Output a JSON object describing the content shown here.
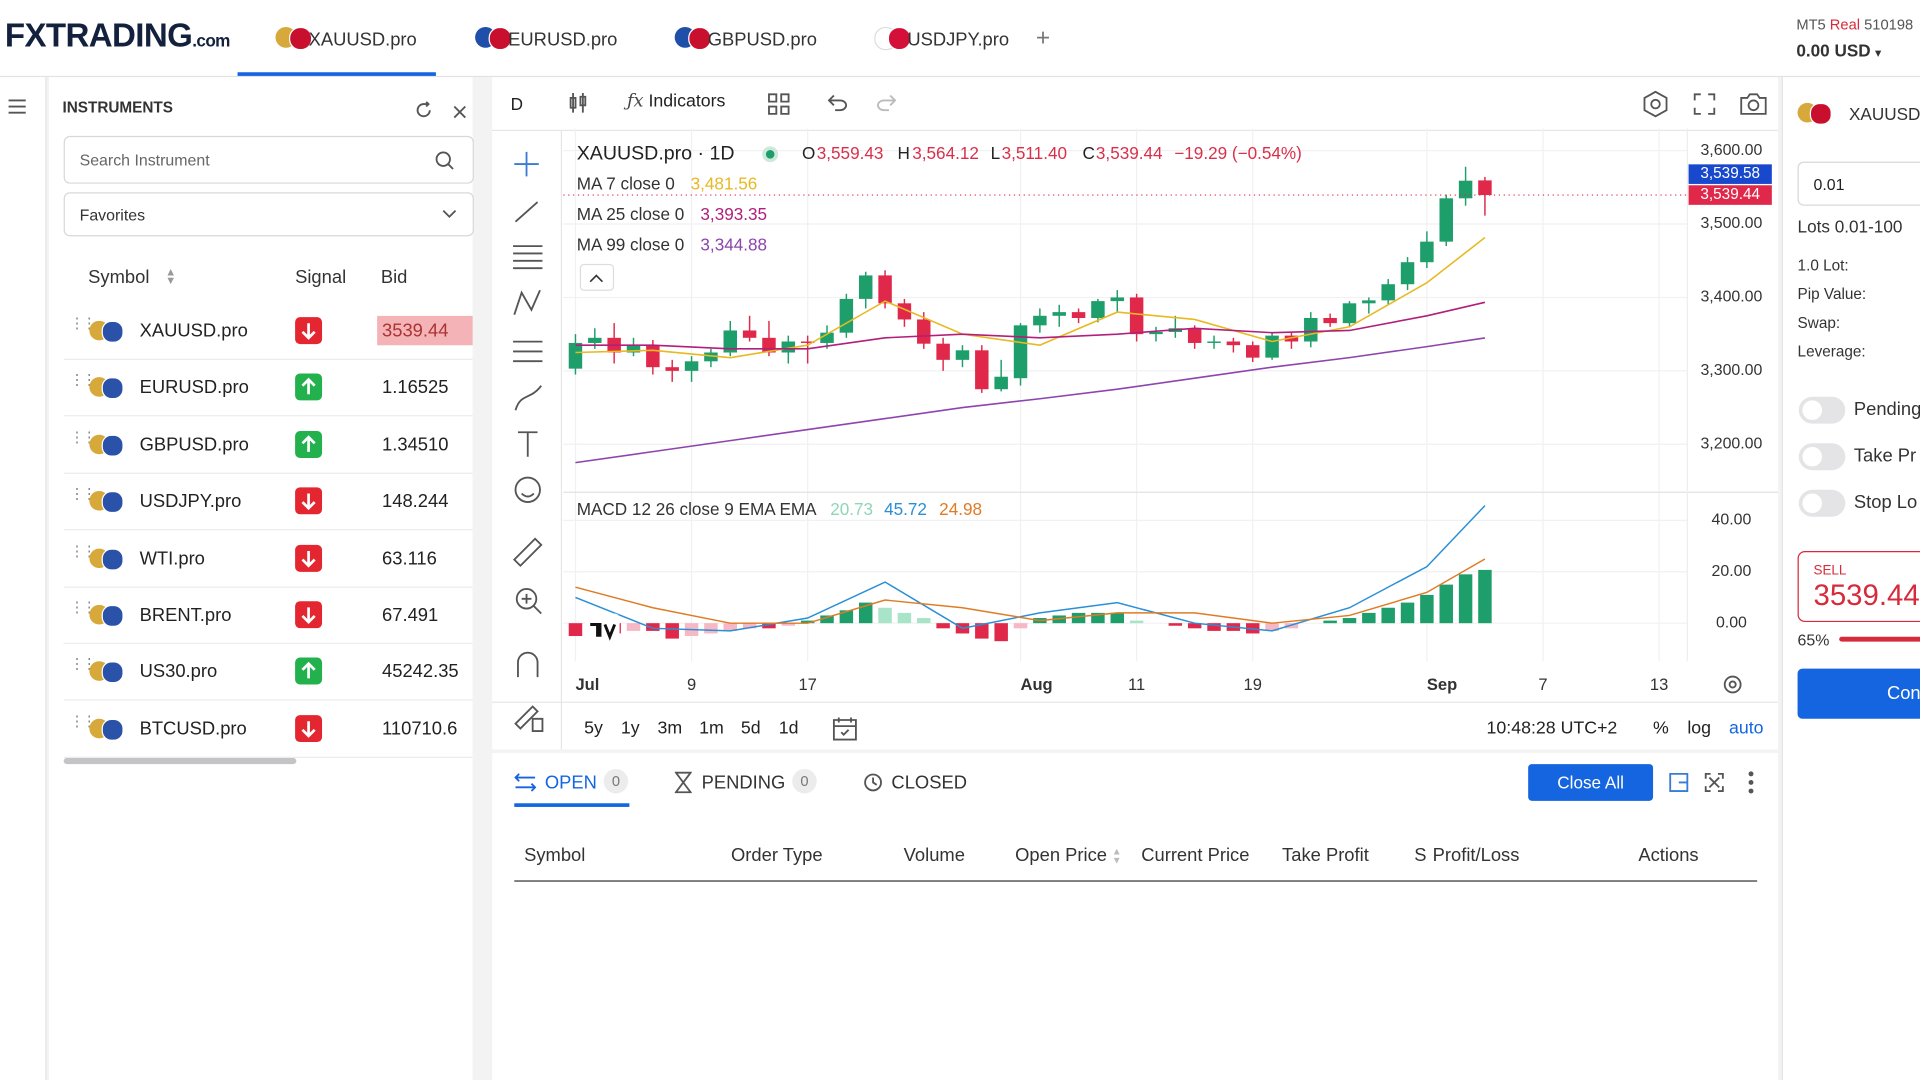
{
  "header": {
    "logo": "FXTRADING",
    "logo_suffix": ".com",
    "tabs": [
      "XAUUSD.pro",
      "EURUSD.pro",
      "GBPUSD.pro",
      "USDJPY.pro"
    ],
    "add_tab": "+",
    "account": {
      "platform": "MT5",
      "mode": "Real",
      "number": "510198",
      "balance": "0.00 USD"
    }
  },
  "instruments": {
    "title": "INSTRUMENTS",
    "search_placeholder": "Search Instrument",
    "filter": "Favorites",
    "columns": [
      "Symbol",
      "Signal",
      "Bid"
    ],
    "rows": [
      {
        "symbol": "XAUUSD.pro",
        "signal": "down",
        "bid": "3539.44"
      },
      {
        "symbol": "EURUSD.pro",
        "signal": "up",
        "bid": "1.16525"
      },
      {
        "symbol": "GBPUSD.pro",
        "signal": "up",
        "bid": "1.34510"
      },
      {
        "symbol": "USDJPY.pro",
        "signal": "down",
        "bid": "148.244"
      },
      {
        "symbol": "WTI.pro",
        "signal": "down",
        "bid": "63.116"
      },
      {
        "symbol": "BRENT.pro",
        "signal": "down",
        "bid": "67.491"
      },
      {
        "symbol": "US30.pro",
        "signal": "up",
        "bid": "45242.35"
      },
      {
        "symbol": "BTCUSD.pro",
        "signal": "down",
        "bid": "110710.6"
      }
    ]
  },
  "toolbar": {
    "interval": "D",
    "indicators": "Indicators"
  },
  "chart": {
    "type": "candlestick",
    "symbol_title": "XAUUSD.pro · 1D",
    "ohlc_legend": {
      "o_label": "O",
      "o": "3,559.43",
      "h_label": "H",
      "h": "3,564.12",
      "l_label": "L",
      "l": "3,511.40",
      "c_label": "C",
      "c": "3,539.44",
      "change": "−19.29 (−0.54%)"
    },
    "up_color": "#1e9e6a",
    "down_color": "#e0294a",
    "grid": true,
    "xlim": [
      -0.63,
      57.46
    ],
    "ylim": [
      3138,
      3630
    ],
    "yticks": [
      {
        "value": 3200,
        "label": "3,200.00"
      },
      {
        "value": 3300,
        "label": "3,300.00"
      },
      {
        "value": 3400,
        "label": "3,400.00"
      },
      {
        "value": 3500,
        "label": "3,500.00"
      },
      {
        "value": 3600,
        "label": "3,600.00"
      }
    ],
    "xticks": [
      {
        "value": 0,
        "label": "Jul"
      },
      {
        "value": 6,
        "label": "9"
      },
      {
        "value": 12,
        "label": "17"
      },
      {
        "value": 23,
        "label": "Aug"
      },
      {
        "value": 29,
        "label": "11"
      },
      {
        "value": 35,
        "label": "19"
      },
      {
        "value": 44,
        "label": "Sep"
      },
      {
        "value": 50,
        "label": "7"
      },
      {
        "value": 56,
        "label": "13"
      }
    ],
    "candles": [
      [
        3303,
        3350,
        3295,
        3338
      ],
      [
        3338,
        3358,
        3330,
        3345
      ],
      [
        3345,
        3365,
        3310,
        3325
      ],
      [
        3325,
        3345,
        3320,
        3335
      ],
      [
        3335,
        3342,
        3295,
        3305
      ],
      [
        3305,
        3315,
        3285,
        3300
      ],
      [
        3300,
        3320,
        3285,
        3313
      ],
      [
        3313,
        3330,
        3305,
        3325
      ],
      [
        3325,
        3368,
        3320,
        3355
      ],
      [
        3355,
        3375,
        3340,
        3345
      ],
      [
        3345,
        3368,
        3320,
        3325
      ],
      [
        3325,
        3348,
        3310,
        3340
      ],
      [
        3340,
        3348,
        3310,
        3338
      ],
      [
        3338,
        3362,
        3330,
        3352
      ],
      [
        3352,
        3405,
        3345,
        3398
      ],
      [
        3398,
        3435,
        3385,
        3430
      ],
      [
        3430,
        3437,
        3385,
        3392
      ],
      [
        3392,
        3398,
        3360,
        3370
      ],
      [
        3370,
        3380,
        3330,
        3337
      ],
      [
        3337,
        3345,
        3300,
        3315
      ],
      [
        3315,
        3335,
        3305,
        3328
      ],
      [
        3328,
        3335,
        3270,
        3275
      ],
      [
        3275,
        3315,
        3272,
        3292
      ],
      [
        3290,
        3365,
        3280,
        3362
      ],
      [
        3362,
        3385,
        3352,
        3375
      ],
      [
        3375,
        3390,
        3360,
        3380
      ],
      [
        3380,
        3385,
        3365,
        3372
      ],
      [
        3372,
        3398,
        3366,
        3395
      ],
      [
        3395,
        3410,
        3380,
        3400
      ],
      [
        3400,
        3405,
        3340,
        3350
      ],
      [
        3350,
        3360,
        3340,
        3353
      ],
      [
        3353,
        3375,
        3345,
        3358
      ],
      [
        3358,
        3362,
        3330,
        3338
      ],
      [
        3338,
        3348,
        3330,
        3340
      ],
      [
        3340,
        3345,
        3325,
        3335
      ],
      [
        3335,
        3340,
        3312,
        3318
      ],
      [
        3318,
        3352,
        3315,
        3348
      ],
      [
        3348,
        3352,
        3330,
        3340
      ],
      [
        3340,
        3380,
        3332,
        3372
      ],
      [
        3372,
        3378,
        3360,
        3365
      ],
      [
        3365,
        3395,
        3360,
        3392
      ],
      [
        3392,
        3400,
        3378,
        3396
      ],
      [
        3396,
        3425,
        3390,
        3418
      ],
      [
        3418,
        3455,
        3410,
        3448
      ],
      [
        3448,
        3490,
        3440,
        3476
      ],
      [
        3476,
        3540,
        3470,
        3535
      ],
      [
        3535,
        3578,
        3525,
        3559
      ],
      [
        3559.43,
        3564.12,
        3511.4,
        3539.44
      ]
    ],
    "ma": [
      {
        "name": "MA 7 close 0",
        "value_label": "3,481.56",
        "color": "#e8b923",
        "x": [
          0,
          4,
          8,
          12,
          16,
          20,
          24,
          28,
          32,
          36,
          40,
          44,
          47
        ],
        "values": [
          3325,
          3328,
          3318,
          3335,
          3395,
          3350,
          3335,
          3380,
          3370,
          3340,
          3360,
          3420,
          3481.56
        ]
      },
      {
        "name": "MA 25 close 0",
        "value_label": "3,393.35",
        "color": "#b0207a",
        "x": [
          0,
          4,
          8,
          12,
          16,
          20,
          24,
          28,
          32,
          36,
          40,
          44,
          47
        ],
        "values": [
          3335,
          3335,
          3330,
          3330,
          3345,
          3350,
          3345,
          3350,
          3358,
          3352,
          3355,
          3375,
          3393.35
        ]
      },
      {
        "name": "MA 99 close 0",
        "value_label": "3,344.88",
        "color": "#8e44ad",
        "x": [
          0,
          4,
          8,
          12,
          16,
          20,
          24,
          28,
          32,
          36,
          40,
          44,
          47
        ],
        "values": [
          3175,
          3190,
          3205,
          3220,
          3235,
          3250,
          3262,
          3275,
          3290,
          3305,
          3318,
          3333,
          3344.88
        ]
      }
    ],
    "last_prices": [
      {
        "value": 3539.58,
        "label": "3,539.58",
        "color": "#1848cc"
      },
      {
        "value": 3539.44,
        "label": "3,539.44",
        "color": "#e0294a"
      }
    ],
    "macd": {
      "title": "MACD 12 26 close 9 EMA EMA",
      "ylim": [
        -14.8,
        49.5
      ],
      "yticks": [
        {
          "value": 0,
          "label": "0.00"
        },
        {
          "value": 20,
          "label": "20.00"
        },
        {
          "value": 40,
          "label": "40.00"
        }
      ],
      "histogram": {
        "value_label": "20.73",
        "label_color": "#8fd6b6",
        "up_color": "#1e9e6a",
        "up_light": "#a8e4c8",
        "down_color": "#e0294a",
        "down_light": "#f5b8c4",
        "values": [
          -5,
          -4,
          -4,
          -3,
          -3,
          -6,
          -5,
          -4,
          -3,
          -2,
          -2,
          -1,
          1,
          3,
          5,
          8,
          6,
          4,
          2,
          -2,
          -4,
          -6,
          -7,
          -2,
          2,
          3,
          4,
          4,
          4,
          1,
          0,
          -1,
          -2,
          -3,
          -3,
          -4,
          -3,
          -2,
          0,
          1,
          2,
          4,
          6,
          8,
          11,
          15,
          19,
          20.73
        ]
      },
      "macd_line": {
        "value_label": "45.72",
        "color": "#2a8fd6",
        "x": [
          0,
          4,
          8,
          12,
          16,
          20,
          24,
          28,
          32,
          36,
          40,
          44,
          47
        ],
        "values": [
          10,
          -2,
          -3,
          2,
          16,
          -2,
          4,
          8,
          0,
          -3,
          6,
          22,
          45.72
        ]
      },
      "signal_line": {
        "value_label": "24.98",
        "color": "#e07b24",
        "x": [
          0,
          4,
          8,
          12,
          16,
          20,
          24,
          28,
          32,
          36,
          40,
          44,
          47
        ],
        "values": [
          14,
          6,
          0,
          0,
          9,
          6,
          1,
          4,
          4,
          0,
          3,
          12,
          24.98
        ]
      }
    },
    "timeframes": [
      "5y",
      "1y",
      "3m",
      "1m",
      "5d",
      "1d"
    ],
    "clock": "10:48:28 UTC+2",
    "options": [
      "%",
      "log",
      "auto"
    ]
  },
  "trades": {
    "tabs": [
      {
        "label": "OPEN",
        "count": "0"
      },
      {
        "label": "PENDING",
        "count": "0"
      },
      {
        "label": "CLOSED"
      }
    ],
    "close_all": "Close All",
    "columns": [
      "Symbol",
      "Order Type",
      "Volume",
      "Open Price",
      "Current Price",
      "Take Profit",
      "S",
      "Profit/Loss",
      "Actions"
    ]
  },
  "order": {
    "symbol": "XAUUSD",
    "lots": "0.01",
    "lots_range": "Lots 0.01-100",
    "info": [
      "1.0 Lot:",
      "Pip Value:",
      "Swap:",
      "Leverage:"
    ],
    "toggles": [
      "Pending",
      "Take Pr",
      "Stop Lo"
    ],
    "sell_label": "SELL",
    "sell_price": "3539.44",
    "percent": "65%",
    "confirm": "Con"
  }
}
